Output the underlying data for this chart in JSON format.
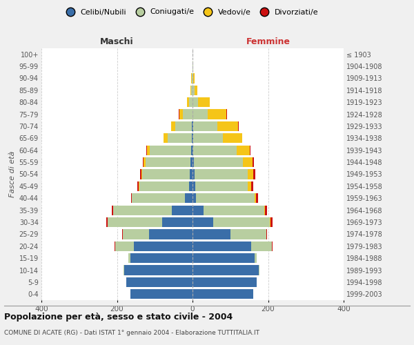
{
  "age_groups": [
    "0-4",
    "5-9",
    "10-14",
    "15-19",
    "20-24",
    "25-29",
    "30-34",
    "35-39",
    "40-44",
    "45-49",
    "50-54",
    "55-59",
    "60-64",
    "65-69",
    "70-74",
    "75-79",
    "80-84",
    "85-89",
    "90-94",
    "95-99",
    "100+"
  ],
  "birth_years": [
    "1999-2003",
    "1994-1998",
    "1989-1993",
    "1984-1988",
    "1979-1983",
    "1974-1978",
    "1969-1973",
    "1964-1968",
    "1959-1963",
    "1954-1958",
    "1949-1953",
    "1944-1948",
    "1939-1943",
    "1934-1938",
    "1929-1933",
    "1924-1928",
    "1919-1923",
    "1914-1918",
    "1909-1913",
    "1904-1908",
    "≤ 1903"
  ],
  "males": {
    "celibi": [
      165,
      175,
      180,
      165,
      155,
      115,
      80,
      55,
      20,
      10,
      8,
      5,
      3,
      1,
      1,
      0,
      0,
      0,
      0,
      0,
      0
    ],
    "coniugati": [
      0,
      0,
      2,
      5,
      50,
      70,
      145,
      155,
      140,
      130,
      125,
      120,
      110,
      65,
      45,
      25,
      10,
      3,
      2,
      0,
      0
    ],
    "vedovi": [
      0,
      0,
      0,
      0,
      0,
      0,
      0,
      0,
      1,
      2,
      3,
      5,
      8,
      10,
      10,
      10,
      5,
      3,
      1,
      0,
      0
    ],
    "divorziati": [
      0,
      0,
      0,
      0,
      1,
      2,
      3,
      3,
      2,
      5,
      3,
      2,
      1,
      1,
      1,
      1,
      0,
      0,
      0,
      0,
      0
    ]
  },
  "females": {
    "nubili": [
      160,
      170,
      175,
      165,
      155,
      100,
      55,
      30,
      10,
      7,
      6,
      4,
      2,
      1,
      1,
      0,
      0,
      0,
      0,
      0,
      0
    ],
    "coniugate": [
      0,
      0,
      2,
      5,
      55,
      95,
      150,
      160,
      155,
      140,
      140,
      130,
      115,
      80,
      65,
      40,
      15,
      5,
      2,
      1,
      0
    ],
    "vedove": [
      0,
      0,
      0,
      0,
      0,
      0,
      1,
      2,
      3,
      8,
      15,
      25,
      35,
      50,
      55,
      50,
      30,
      8,
      3,
      1,
      0
    ],
    "divorziate": [
      0,
      0,
      0,
      0,
      1,
      2,
      5,
      5,
      5,
      5,
      5,
      4,
      2,
      1,
      1,
      1,
      0,
      0,
      0,
      0,
      0
    ]
  },
  "colors": {
    "celibi_nubili": "#3a6ea8",
    "coniugati": "#b8cea0",
    "vedovi": "#f5c518",
    "divorziati": "#cc1111"
  },
  "xlim": 400,
  "title": "Popolazione per età, sesso e stato civile - 2004",
  "subtitle": "COMUNE DI ACATE (RG) - Dati ISTAT 1° gennaio 2004 - Elaborazione TUTTITALIA.IT",
  "xlabel_left": "Maschi",
  "xlabel_right": "Femmine",
  "ylabel_left": "Fasce di età",
  "legend_labels": [
    "Celibi/Nubili",
    "Coniugati/e",
    "Vedovi/e",
    "Divorziati/e"
  ],
  "bg_color": "#f0f0f0",
  "plot_bg": "#ffffff"
}
